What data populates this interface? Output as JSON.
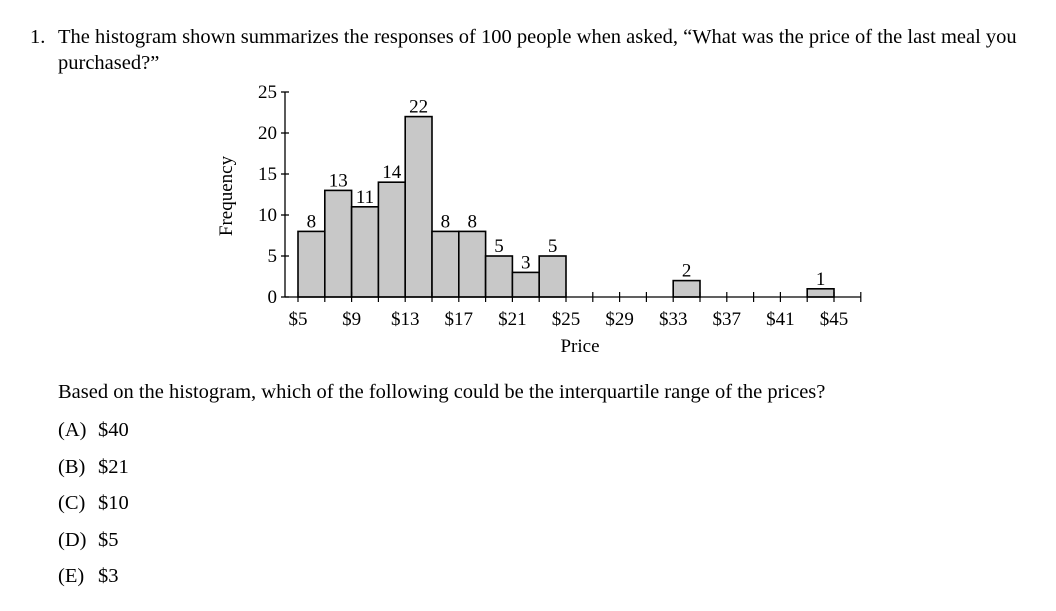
{
  "question": {
    "number": "1.",
    "text": "The histogram shown summarizes the responses of 100 people when asked, “What was the price of the last meal you purchased?”"
  },
  "chart_data": {
    "type": "bar",
    "subtype": "histogram",
    "bin_width": 2,
    "categories": [
      "$5-$7",
      "$7-$9",
      "$9-$11",
      "$11-$13",
      "$13-$15",
      "$15-$17",
      "$17-$19",
      "$19-$21",
      "$21-$23",
      "$23-$25",
      "$25-$27",
      "$27-$29",
      "$29-$31",
      "$31-$33",
      "$33-$35",
      "$35-$37",
      "$37-$39",
      "$39-$41",
      "$41-$43",
      "$43-$45",
      "$45-$47"
    ],
    "bin_starts": [
      5,
      7,
      9,
      11,
      13,
      15,
      17,
      19,
      21,
      23,
      25,
      27,
      29,
      31,
      33,
      35,
      37,
      39,
      41,
      43,
      45
    ],
    "values": [
      8,
      13,
      11,
      14,
      22,
      8,
      8,
      5,
      3,
      5,
      0,
      0,
      0,
      0,
      2,
      0,
      0,
      0,
      0,
      1,
      0
    ],
    "data_labels": [
      "8",
      "13",
      "11",
      "14",
      "22",
      "8",
      "8",
      "5",
      "3",
      "5",
      "",
      "",
      "",
      "",
      "2",
      "",
      "",
      "",
      "",
      "1",
      ""
    ],
    "xlabel": "Price",
    "ylabel": "Frequency",
    "x_ticks": [
      5,
      9,
      13,
      17,
      21,
      25,
      29,
      33,
      37,
      41,
      45
    ],
    "x_tick_labels": [
      "$5",
      "$9",
      "$13",
      "$17",
      "$21",
      "$25",
      "$29",
      "$33",
      "$37",
      "$41",
      "$45"
    ],
    "y_ticks": [
      0,
      5,
      10,
      15,
      20,
      25
    ],
    "y_tick_labels": [
      "0",
      "5",
      "10",
      "15",
      "20",
      "25"
    ],
    "xlim": [
      5,
      47
    ],
    "ylim": [
      0,
      25
    ],
    "bar_color": "#c8c8c8",
    "grid": false
  },
  "prompt": "Based on the histogram, which of the following could be the interquartile range of the prices?",
  "choices": [
    {
      "letter": "(A)",
      "text": "$40"
    },
    {
      "letter": "(B)",
      "text": "$21"
    },
    {
      "letter": "(C)",
      "text": "$10"
    },
    {
      "letter": "(D)",
      "text": "$5"
    },
    {
      "letter": "(E)",
      "text": "$3"
    }
  ]
}
